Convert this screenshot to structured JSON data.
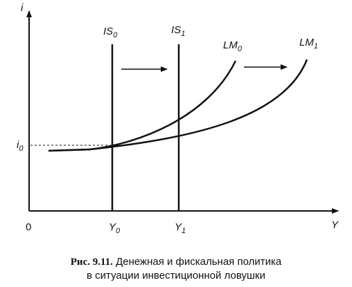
{
  "axes": {
    "y_label": "i",
    "x_label": "Y",
    "origin_label": "0"
  },
  "curves": {
    "is0": {
      "base": "IS",
      "sub": "0"
    },
    "is1": {
      "base": "IS",
      "sub": "1"
    },
    "lm0": {
      "base": "LM",
      "sub": "0"
    },
    "lm1": {
      "base": "LM",
      "sub": "1"
    }
  },
  "ticks": {
    "i0": {
      "base": "i",
      "sub": "0"
    },
    "y0": {
      "base": "Y",
      "sub": "0"
    },
    "y1": {
      "base": "Y",
      "sub": "1"
    }
  },
  "caption": {
    "figure_label": "Рис. 9.11.",
    "line1": "Денежная и фискальная политика",
    "line2": "в ситуации инвестиционной ловушки"
  }
}
